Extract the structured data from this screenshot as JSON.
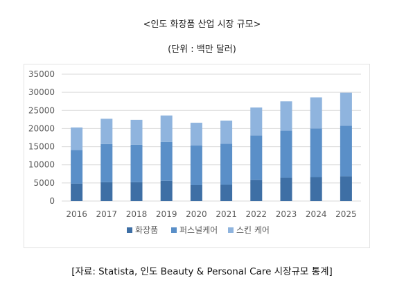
{
  "title": "<인도 화장품 산업 시장 규모>",
  "unit": "(단위 : 백만 달러)",
  "source": "[자료: Statista, 인도 Beauty & Personal Care 시장규모 통계]",
  "colors": {
    "cosmetics": "#3E6FA5",
    "personal_care": "#5A8FC8",
    "skin_care": "#8FB4DE",
    "grid": "#d9d9d9"
  },
  "chart_data": {
    "type": "bar",
    "stacked": true,
    "categories": [
      "2016",
      "2017",
      "2018",
      "2019",
      "2020",
      "2021",
      "2022",
      "2023",
      "2024",
      "2025"
    ],
    "series": [
      {
        "name": "화장품",
        "values": [
          4800,
          5200,
          5200,
          5600,
          4400,
          4500,
          5800,
          6400,
          6600,
          6800
        ]
      },
      {
        "name": "퍼스널케어",
        "values": [
          9300,
          10500,
          10300,
          10700,
          10900,
          11300,
          12300,
          13000,
          13400,
          14000
        ]
      },
      {
        "name": "스킨 케어",
        "values": [
          6200,
          7000,
          6900,
          7300,
          6300,
          6400,
          7700,
          8100,
          8600,
          9100
        ]
      }
    ],
    "ylim": [
      0,
      35000
    ],
    "yticks": [
      0,
      5000,
      10000,
      15000,
      20000,
      25000,
      30000,
      35000
    ],
    "grid": true,
    "legend_position": "bottom"
  }
}
